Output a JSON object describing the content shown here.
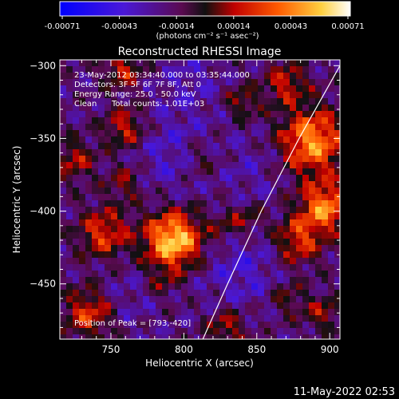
{
  "colorbar": {
    "ticks": [
      "-0.00071",
      "-0.00043",
      "-0.00014",
      "0.00014",
      "0.00043",
      "0.00071"
    ],
    "units_label": "(photons cm⁻² s⁻¹ asec⁻²)"
  },
  "title": "Reconstructed RHESSI Image",
  "annotations": {
    "time_range": "23-May-2012 03:34:40.000 to 03:35:44.000",
    "detectors": "Detectors: 3F 5F 6F 7F 8F, Att 0",
    "energy_range": "Energy Range: 25.0 - 50.0 keV",
    "method": "Clean",
    "total_counts": "Total counts: 1.01E+03",
    "peak": "Position of Peak = [793,-420]"
  },
  "footer_timestamp": "11-May-2022 02:53",
  "chart_data": {
    "type": "heatmap",
    "title": "Reconstructed RHESSI Image",
    "xlabel": "Heliocentric X (arcsec)",
    "ylabel": "Heliocentric Y (arcsec)",
    "xlim": [
      715,
      907
    ],
    "ylim": [
      -488,
      -296
    ],
    "xticks": [
      750,
      800,
      850,
      900
    ],
    "yticks": [
      -300,
      -350,
      -400,
      -450
    ],
    "colorbar_range": [
      -0.00071,
      0.00071
    ],
    "colormap": "blue-purple-red-yellow-white",
    "peak_position": [
      793,
      -420
    ],
    "limb_curve": [
      [
        813,
        -488
      ],
      [
        830,
        -450
      ],
      [
        853,
        -400
      ],
      [
        879,
        -350
      ],
      [
        907,
        -300
      ]
    ],
    "grid": false
  }
}
